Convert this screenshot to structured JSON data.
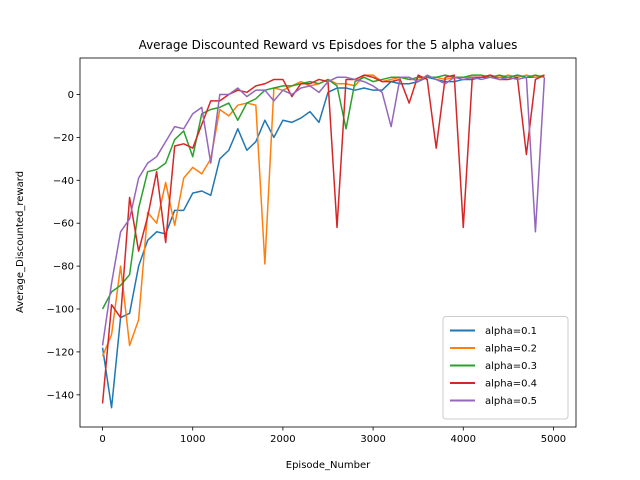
{
  "chart_data": {
    "type": "line",
    "title": "Average Discounted Reward vs Episdoes for the 5 alpha values",
    "xlabel": "Episode_Number",
    "ylabel": "Average_Discounted_reward",
    "xlim": [
      -250,
      5250
    ],
    "ylim": [
      -155,
      17
    ],
    "xticks": [
      0,
      1000,
      2000,
      3000,
      4000,
      5000
    ],
    "yticks": [
      -140,
      -120,
      -100,
      -80,
      -60,
      -40,
      -20,
      0
    ],
    "grid": false,
    "legend_position": "lower-right",
    "x": [
      0,
      100,
      200,
      300,
      400,
      500,
      600,
      700,
      800,
      900,
      1000,
      1100,
      1200,
      1300,
      1400,
      1500,
      1600,
      1700,
      1800,
      1900,
      2000,
      2100,
      2200,
      2300,
      2400,
      2500,
      2600,
      2700,
      2800,
      2900,
      3000,
      3100,
      3200,
      3300,
      3400,
      3500,
      3600,
      3700,
      3800,
      3900,
      4000,
      4100,
      4200,
      4300,
      4400,
      4500,
      4600,
      4700,
      4800,
      4900
    ],
    "series": [
      {
        "name": "alpha=0.1",
        "color": "#1f77b4",
        "values": [
          -118,
          -146,
          -104,
          -102,
          -80,
          -68,
          -64,
          -65,
          -54,
          -54,
          -46,
          -45,
          -47,
          -30,
          -26,
          -16,
          -26,
          -22,
          -12,
          -20,
          -12,
          -13,
          -11,
          -8,
          -13,
          1,
          3,
          3,
          2,
          3,
          2,
          2,
          6,
          5,
          5,
          6,
          8,
          7,
          6,
          6,
          7,
          7,
          8,
          8,
          8,
          8,
          9,
          8,
          8,
          9
        ]
      },
      {
        "name": "alpha=0.2",
        "color": "#ff7f0e",
        "values": [
          -122,
          -112,
          -80,
          -117,
          -105,
          -55,
          -60,
          -41,
          -61,
          -39,
          -34,
          -37,
          -30,
          -7,
          -10,
          -5,
          -4,
          -5,
          -79,
          3,
          2,
          4,
          6,
          4,
          5,
          7,
          5,
          5,
          4,
          9,
          9,
          6,
          7,
          8,
          7,
          7,
          8,
          8,
          7,
          8,
          8,
          8,
          8,
          9,
          8,
          9,
          8,
          9,
          8,
          9
        ]
      },
      {
        "name": "alpha=0.3",
        "color": "#2ca02c",
        "values": [
          -100,
          -92,
          -89,
          -84,
          -53,
          -36,
          -35,
          -32,
          -21,
          -17,
          -29,
          -9,
          -7,
          -6,
          -4,
          -12,
          -4,
          -2,
          2,
          3,
          4,
          4,
          5,
          6,
          5,
          7,
          4,
          -16,
          6,
          8,
          6,
          7,
          8,
          8,
          7,
          8,
          8,
          8,
          9,
          8,
          8,
          9,
          9,
          8,
          9,
          8,
          9,
          8,
          9,
          8
        ]
      },
      {
        "name": "alpha=0.4",
        "color": "#d62728",
        "values": [
          -144,
          -98,
          -104,
          -48,
          -73,
          -57,
          -36,
          -69,
          -24,
          -23,
          -25,
          -14,
          -3,
          -3,
          0,
          2,
          1,
          4,
          5,
          7,
          7,
          -1,
          5,
          5,
          7,
          6,
          -62,
          7,
          7,
          9,
          8,
          6,
          6,
          7,
          -4,
          9,
          7,
          -25,
          8,
          9,
          -62,
          8,
          8,
          9,
          7,
          7,
          8,
          -28,
          7,
          9
        ]
      },
      {
        "name": "alpha=0.5",
        "color": "#9467bd",
        "values": [
          -117,
          -88,
          -64,
          -58,
          -39,
          -32,
          -29,
          -22,
          -15,
          -16,
          -9,
          -6,
          -32,
          0,
          0,
          3,
          -1,
          2,
          2,
          -3,
          2,
          0,
          3,
          4,
          1,
          6,
          8,
          8,
          7,
          6,
          4,
          1,
          -15,
          8,
          8,
          6,
          9,
          7,
          5,
          8,
          7,
          8,
          7,
          8,
          7,
          8,
          7,
          8,
          -64,
          8
        ]
      }
    ]
  }
}
